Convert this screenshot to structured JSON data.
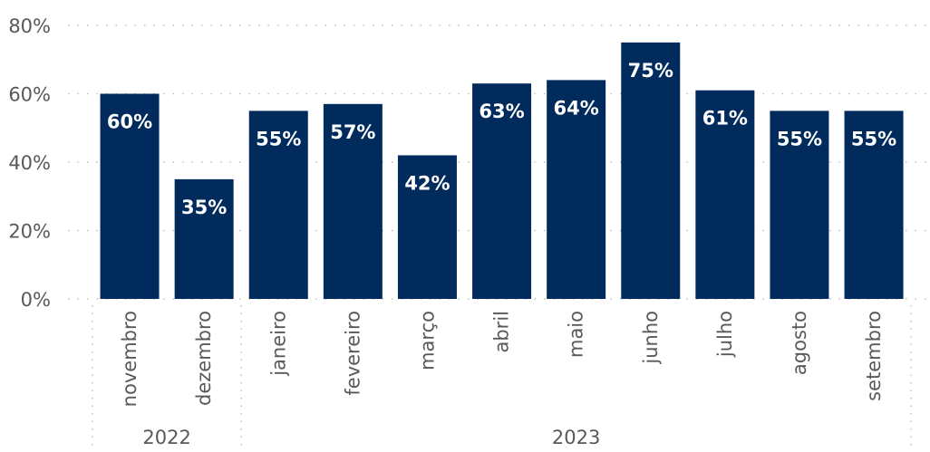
{
  "chart_data": {
    "type": "bar",
    "categories": [
      "novembro",
      "dezembro",
      "janeiro",
      "fevereiro",
      "março",
      "abril",
      "maio",
      "junho",
      "julho",
      "agosto",
      "setembro"
    ],
    "values": [
      60,
      35,
      55,
      57,
      42,
      63,
      64,
      75,
      61,
      55,
      55
    ],
    "value_labels": [
      "60%",
      "35%",
      "55%",
      "57%",
      "42%",
      "63%",
      "64%",
      "75%",
      "61%",
      "55%",
      "55%"
    ],
    "groups": [
      {
        "label": "2022",
        "count": 2
      },
      {
        "label": "2023",
        "count": 9
      }
    ],
    "y_ticks": [
      0,
      20,
      40,
      60,
      80
    ],
    "y_tick_labels": [
      "0%",
      "20%",
      "40%",
      "60%",
      "80%"
    ],
    "ylim": [
      0,
      80
    ],
    "grid": true,
    "bar_color": "#002b5c",
    "label_color": "#ffffff"
  }
}
